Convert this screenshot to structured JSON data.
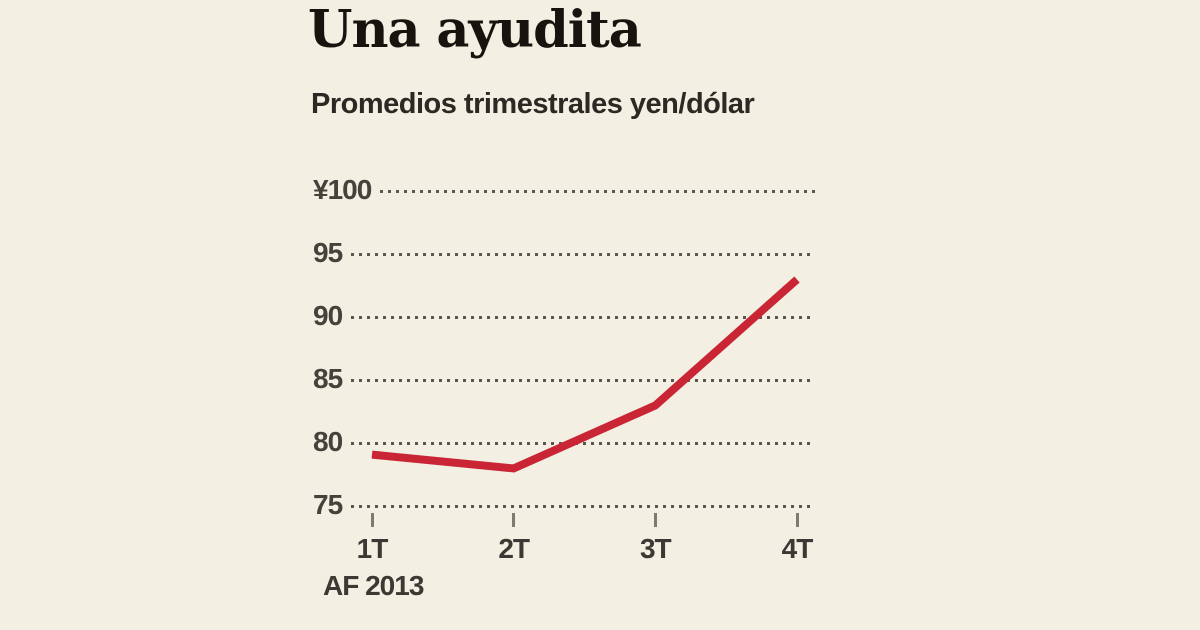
{
  "chart": {
    "title": "Una ayudita",
    "subtitle": "Promedios trimestrales yen/dólar"
  },
  "chart_data": {
    "type": "line",
    "title": "Una ayudita",
    "subtitle": "Promedios trimestrales yen/dólar",
    "categories": [
      "1T",
      "2T",
      "3T",
      "4T"
    ],
    "x_axis_note": "AF 2013",
    "series": [
      {
        "name": "yen/dólar",
        "values": [
          79.0,
          77.9,
          82.9,
          92.9
        ]
      }
    ],
    "y_axis": [
      {
        "value": 100,
        "label": "¥100"
      },
      {
        "value": 95,
        "label": "95"
      },
      {
        "value": 90,
        "label": "90"
      },
      {
        "value": 85,
        "label": "85"
      },
      {
        "value": 80,
        "label": "80"
      },
      {
        "value": 75,
        "label": "75"
      }
    ],
    "ylim": [
      75,
      100
    ],
    "grid": "dotted-horizontal",
    "legend": "none",
    "colors": {
      "background": "#f3efe2",
      "line": "#c92534",
      "grid_dots": "#5a564d",
      "axis_text": "#45413b",
      "x_tick": "#7d7a6e"
    }
  }
}
